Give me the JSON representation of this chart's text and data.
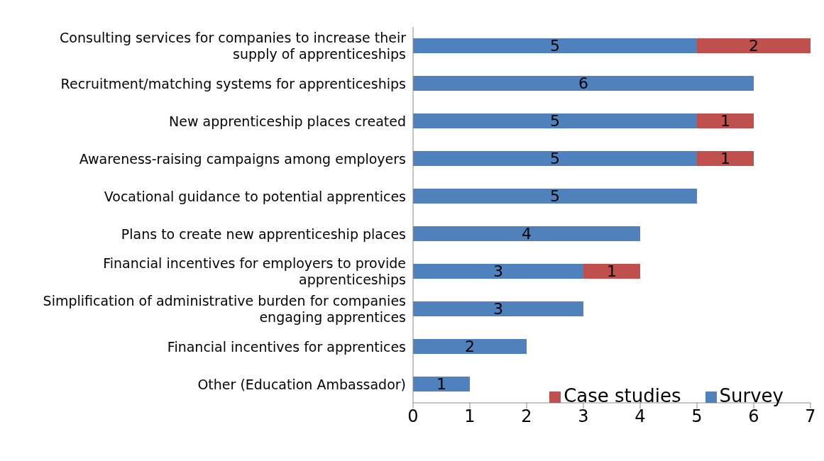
{
  "chart_data": {
    "type": "bar",
    "orientation": "horizontal",
    "stacked": true,
    "categories": [
      "Consulting services for companies to increase their supply of apprenticeships",
      "Recruitment/matching systems for apprenticeships",
      "New apprenticeship places created",
      "Awareness-raising campaigns among employers",
      "Vocational guidance to potential apprentices",
      "Plans to create new apprenticeship places",
      "Financial incentives for employers to provide apprenticeships",
      "Simplification of administrative burden for companies engaging apprentices",
      "Financial incentives for apprentices",
      "Other (Education Ambassador)"
    ],
    "series": [
      {
        "name": "Survey",
        "color": "#4f81bd",
        "values": [
          5,
          6,
          5,
          5,
          5,
          4,
          3,
          3,
          2,
          1
        ]
      },
      {
        "name": "Case studies",
        "color": "#c0504d",
        "values": [
          2,
          null,
          1,
          1,
          null,
          null,
          1,
          null,
          null,
          null
        ]
      }
    ],
    "xlim": [
      0,
      7
    ],
    "xticks": [
      0,
      1,
      2,
      3,
      4,
      5,
      6,
      7
    ],
    "data_labels": true,
    "grid": false,
    "legend": "bottom right"
  }
}
